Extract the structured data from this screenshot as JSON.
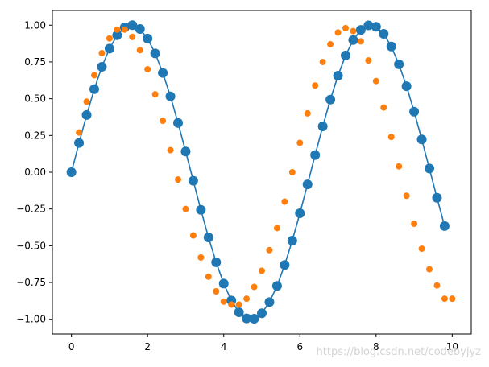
{
  "chart_data": {
    "type": "line",
    "title": "",
    "xlabel": "",
    "ylabel": "",
    "xlim": [
      -0.5,
      10.5
    ],
    "ylim": [
      -1.1,
      1.1
    ],
    "grid": false,
    "legend": "none",
    "x_ticks": [
      0,
      2,
      4,
      6,
      8,
      10
    ],
    "x_tick_labels": [
      "0",
      "2",
      "4",
      "6",
      "8",
      "10"
    ],
    "y_ticks": [
      1.0,
      0.75,
      0.5,
      0.25,
      0.0,
      -0.25,
      -0.5,
      -0.75,
      -1.0
    ],
    "y_tick_labels": [
      "1.00",
      "0.75",
      "0.50",
      "0.25",
      "0.00",
      "−0.25",
      "−0.50",
      "−0.75",
      "−1.00"
    ],
    "series": [
      {
        "style": "line-markers",
        "color": "#1f77b4",
        "x": [
          0.0,
          0.2,
          0.4,
          0.6,
          0.8,
          1.0,
          1.2,
          1.4,
          1.6,
          1.8,
          2.0,
          2.2,
          2.4,
          2.6,
          2.8,
          3.0,
          3.2,
          3.4,
          3.6,
          3.8,
          4.0,
          4.2,
          4.4,
          4.6,
          4.8,
          5.0,
          5.2,
          5.4,
          5.6,
          5.8,
          6.0,
          6.2,
          6.4,
          6.6,
          6.8,
          7.0,
          7.2,
          7.4,
          7.6,
          7.8,
          8.0,
          8.2,
          8.4,
          8.6,
          8.8,
          9.0,
          9.2,
          9.4,
          9.6,
          9.8
        ],
        "y": [
          0.0,
          0.199,
          0.389,
          0.565,
          0.717,
          0.841,
          0.932,
          0.985,
          1.0,
          0.974,
          0.909,
          0.808,
          0.675,
          0.516,
          0.335,
          0.141,
          -0.058,
          -0.256,
          -0.443,
          -0.612,
          -0.757,
          -0.872,
          -0.952,
          -0.994,
          -0.996,
          -0.959,
          -0.883,
          -0.773,
          -0.631,
          -0.465,
          -0.279,
          -0.083,
          0.117,
          0.312,
          0.494,
          0.657,
          0.794,
          0.899,
          0.968,
          0.999,
          0.989,
          0.941,
          0.855,
          0.734,
          0.585,
          0.412,
          0.223,
          0.025,
          -0.174,
          -0.366
        ]
      },
      {
        "style": "scatter",
        "color": "#ff7f0e",
        "x": [
          0.2,
          0.4,
          0.6,
          0.8,
          1.0,
          1.2,
          1.4,
          1.6,
          1.8,
          2.0,
          2.2,
          2.4,
          2.6,
          2.8,
          3.0,
          3.2,
          3.4,
          3.6,
          3.8,
          4.0,
          4.2,
          4.4,
          4.6,
          4.8,
          5.0,
          5.2,
          5.4,
          5.6,
          5.8,
          6.0,
          6.2,
          6.4,
          6.6,
          6.8,
          7.0,
          7.2,
          7.4,
          7.6,
          7.8,
          8.0,
          8.2,
          8.4,
          8.6,
          8.8,
          9.0,
          9.2,
          9.4,
          9.6,
          9.8,
          10.0
        ],
        "y": [
          0.27,
          0.48,
          0.66,
          0.81,
          0.91,
          0.97,
          0.97,
          0.92,
          0.83,
          0.7,
          0.53,
          0.35,
          0.15,
          -0.05,
          -0.25,
          -0.43,
          -0.58,
          -0.71,
          -0.81,
          -0.88,
          -0.9,
          -0.9,
          -0.86,
          -0.78,
          -0.67,
          -0.53,
          -0.38,
          -0.2,
          0.0,
          0.2,
          0.4,
          0.59,
          0.75,
          0.87,
          0.95,
          0.98,
          0.96,
          0.89,
          0.76,
          0.62,
          0.44,
          0.24,
          0.04,
          -0.16,
          -0.35,
          -0.52,
          -0.66,
          -0.77,
          -0.86,
          -0.86
        ]
      }
    ]
  },
  "watermark_text": "https://blog.csdn.net/codebyjyz"
}
